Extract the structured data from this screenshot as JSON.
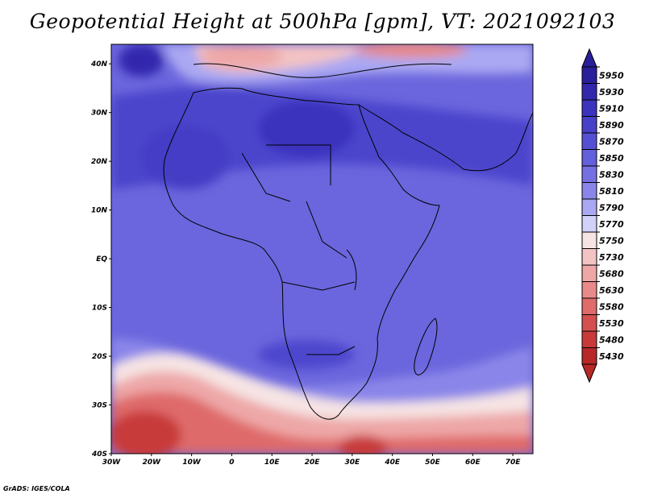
{
  "title": "Geopotential Height at 500hPa [gpm], VT: 2021092103",
  "credit": "GrADS: IGES/COLA",
  "map": {
    "lon_ticks": [
      "30W",
      "20W",
      "10W",
      "0",
      "10E",
      "20E",
      "30E",
      "40E",
      "50E",
      "60E",
      "70E"
    ],
    "lat_ticks": [
      "40N",
      "30N",
      "20N",
      "10N",
      "EQ",
      "10S",
      "20S",
      "30S",
      "40S"
    ],
    "lon_range": [
      -30,
      75
    ],
    "lat_range": [
      -40,
      44
    ]
  },
  "colorbar": {
    "levels": [
      "5950",
      "5930",
      "5910",
      "5890",
      "5870",
      "5850",
      "5830",
      "5810",
      "5790",
      "5770",
      "5750",
      "5730",
      "5680",
      "5630",
      "5580",
      "5530",
      "5480",
      "5430"
    ],
    "colors": [
      "#2a1f9a",
      "#3328ad",
      "#3b32bd",
      "#4641c8",
      "#5550d3",
      "#6360db",
      "#7570e2",
      "#8a86e9",
      "#aaa8f2",
      "#d2d1fa",
      "#f6e4e4",
      "#f3c3c3",
      "#eea7a7",
      "#e88a8a",
      "#df6b6b",
      "#d45050",
      "#c83a3a",
      "#b82828"
    ]
  }
}
